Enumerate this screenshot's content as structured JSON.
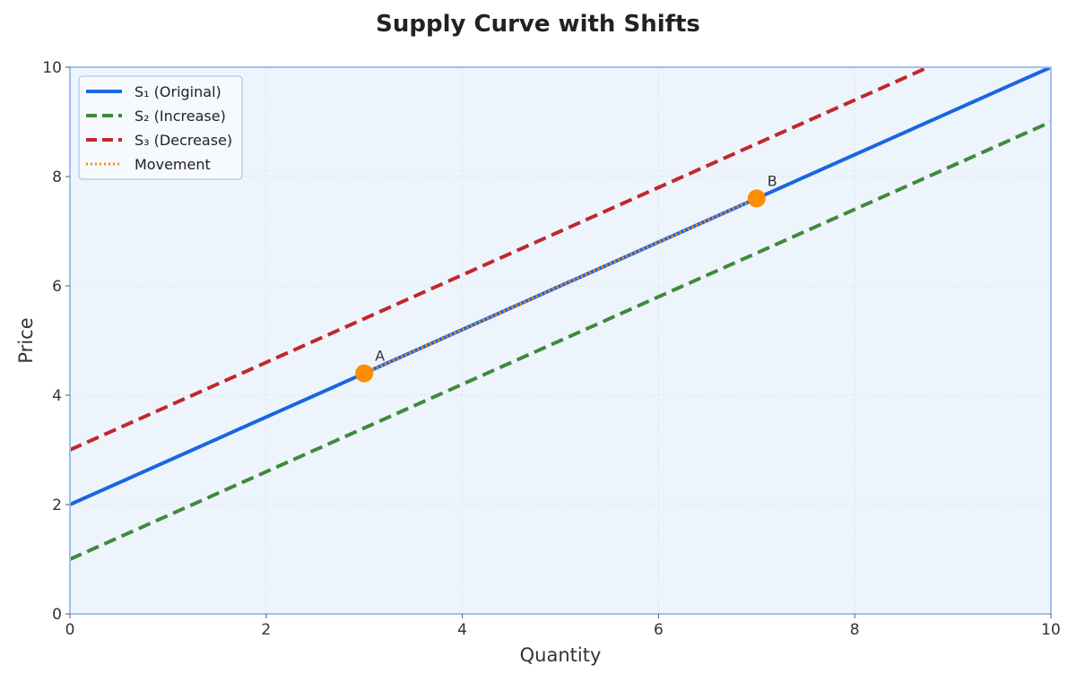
{
  "chart_data": {
    "type": "line",
    "title": "Supply Curve with Shifts",
    "xlabel": "Quantity",
    "ylabel": "Price",
    "xlim": [
      0,
      10
    ],
    "ylim": [
      0,
      10
    ],
    "xticks": [
      "0",
      "2",
      "4",
      "6",
      "8",
      "10"
    ],
    "yticks": [
      "0",
      "2",
      "4",
      "6",
      "8",
      "10"
    ],
    "grid": true,
    "legend_position": "top-left",
    "background_color": "#eef4fc",
    "series": [
      {
        "name": "S₁ (Original)",
        "style": "solid",
        "color": "#1a66e0",
        "x": [
          0,
          10
        ],
        "y": [
          2,
          10
        ]
      },
      {
        "name": "S₂ (Increase)",
        "style": "dashed",
        "color": "#3f8a3a",
        "x": [
          0,
          10
        ],
        "y": [
          1,
          9
        ]
      },
      {
        "name": "S₃ (Decrease)",
        "style": "dashed",
        "color": "#c1272d",
        "x": [
          0,
          8.75
        ],
        "y": [
          3,
          10
        ]
      },
      {
        "name": "Movement",
        "style": "dotted",
        "color": "#ff8c00",
        "x": [
          3,
          7
        ],
        "y": [
          4.4,
          7.6
        ]
      }
    ],
    "points": [
      {
        "label": "A",
        "x": 3,
        "y": 4.4,
        "color": "#ff8c00"
      },
      {
        "label": "B",
        "x": 7,
        "y": 7.6,
        "color": "#ff8c00"
      }
    ]
  }
}
